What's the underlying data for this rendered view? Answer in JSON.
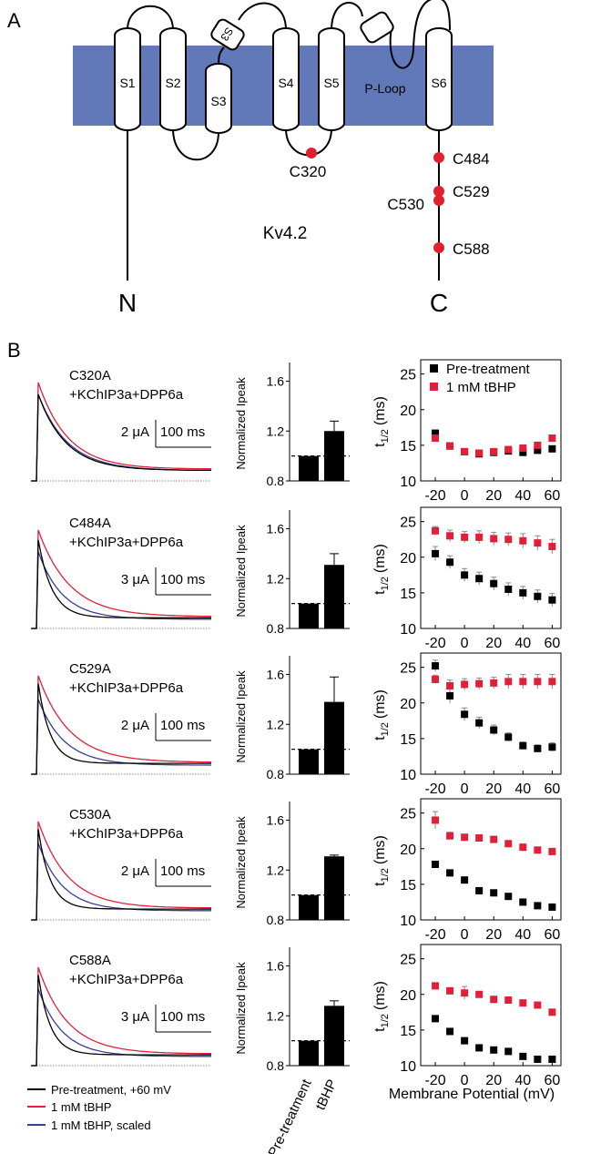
{
  "panels": {
    "a_label": "A",
    "b_label": "B"
  },
  "topology": {
    "segments": [
      "S1",
      "S2",
      "S3",
      "S4",
      "S5",
      "S6"
    ],
    "helix_label": "S3",
    "p_loop": "P-Loop",
    "channel": "Kv4.2",
    "n_term": "N",
    "c_term": "C",
    "cysteines": [
      "C320",
      "C484",
      "C529",
      "C530",
      "C588"
    ],
    "colors": {
      "membrane": "#6179b8",
      "cysteine": "#e0202f"
    }
  },
  "colors": {
    "pre": "#000000",
    "tbhp": "#e0203a",
    "scaled": "#3a3f8f"
  },
  "legend_traces": {
    "pre": "Pre-treatment, +60 mV",
    "tbhp": "1 mM tBHP",
    "scaled": "1 mM tBHP, scaled"
  },
  "legend_points": {
    "pre": "Pre-treatment",
    "tbhp": "1 mM tBHP"
  },
  "bar_axis": {
    "ylabel": "Normalized Ipeak",
    "ticks": [
      "0.8",
      "1.2",
      "1.6"
    ],
    "ylim": [
      0.8,
      1.75
    ],
    "categories": [
      "Pre-treatment",
      "tBHP"
    ]
  },
  "t_axis": {
    "ylabel_main": "t",
    "ylabel_sub": "1/2",
    "ylabel_unit": "(ms)",
    "yticks": [
      "10",
      "15",
      "20",
      "25"
    ],
    "ylim": [
      10,
      27
    ],
    "xticks": [
      "-20",
      "0",
      "20",
      "40",
      "60"
    ],
    "xlim": [
      -30,
      66
    ],
    "xlabel": "Membrane Potential (mV)"
  },
  "scalebar_time": "100 ms",
  "rows": [
    {
      "mutant": "C320A",
      "subunits": "+KChIP3a+DPP6a",
      "current": "2 μA"
    },
    {
      "mutant": "C484A",
      "subunits": "+KChIP3a+DPP6a",
      "current": "3 μA"
    },
    {
      "mutant": "C529A",
      "subunits": "+KChIP3a+DPP6a",
      "current": "2 μA"
    },
    {
      "mutant": "C530A",
      "subunits": "+KChIP3a+DPP6a",
      "current": "2 μA"
    },
    {
      "mutant": "C588A",
      "subunits": "+KChIP3a+DPP6a",
      "current": "3 μA"
    }
  ],
  "chart_data": [
    {
      "type": "bar",
      "categories": [
        "Pre-treatment",
        "tBHP"
      ],
      "values": [
        1.0,
        1.2
      ],
      "errors": [
        0,
        0.08
      ],
      "ylabel": "Normalized Ipeak",
      "ylim": [
        0.8,
        1.75
      ],
      "reference_line": 1.0
    },
    {
      "type": "scatter",
      "x": [
        -20,
        -10,
        0,
        10,
        20,
        30,
        40,
        50,
        60
      ],
      "series": [
        {
          "name": "Pre-treatment",
          "values": [
            16.7,
            14.9,
            14.1,
            13.8,
            14.0,
            14.2,
            14.0,
            14.3,
            14.5
          ],
          "errors": [
            0.4,
            0.3,
            0.3,
            0.3,
            0.3,
            0.5,
            0.5,
            0.5,
            0.4
          ]
        },
        {
          "name": "1 mM tBHP",
          "values": [
            16.0,
            14.9,
            14.1,
            13.9,
            14.1,
            14.4,
            14.6,
            15.0,
            16.0
          ],
          "errors": [
            0.3,
            0.3,
            0.3,
            0.2,
            0.2,
            0.3,
            0.3,
            0.3,
            0.4
          ]
        }
      ],
      "ylabel": "t1/2 (ms)",
      "xlabel": "Membrane Potential (mV)",
      "ylim": [
        10,
        27
      ]
    },
    {
      "type": "bar",
      "categories": [
        "Pre-treatment",
        "tBHP"
      ],
      "values": [
        1.0,
        1.31
      ],
      "errors": [
        0,
        0.09
      ],
      "ylabel": "Normalized Ipeak",
      "ylim": [
        0.8,
        1.75
      ],
      "reference_line": 1.0
    },
    {
      "type": "scatter",
      "x": [
        -20,
        -10,
        0,
        10,
        20,
        30,
        40,
        50,
        60
      ],
      "series": [
        {
          "name": "Pre-treatment",
          "values": [
            20.5,
            19.3,
            17.5,
            17.0,
            16.3,
            15.5,
            15.0,
            14.5,
            14.0
          ],
          "errors": [
            1.0,
            0.9,
            0.9,
            0.9,
            0.9,
            0.9,
            0.9,
            0.9,
            0.9
          ]
        },
        {
          "name": "1 mM tBHP",
          "values": [
            23.7,
            23.0,
            22.8,
            22.8,
            22.6,
            22.5,
            22.3,
            22.0,
            21.5
          ],
          "errors": [
            0.6,
            0.8,
            0.8,
            0.9,
            0.9,
            0.9,
            1.0,
            1.0,
            1.0
          ]
        }
      ],
      "ylabel": "t1/2 (ms)",
      "xlabel": "Membrane Potential (mV)",
      "ylim": [
        10,
        27
      ]
    },
    {
      "type": "bar",
      "categories": [
        "Pre-treatment",
        "tBHP"
      ],
      "values": [
        1.0,
        1.38
      ],
      "errors": [
        0,
        0.2
      ],
      "ylabel": "Normalized Ipeak",
      "ylim": [
        0.8,
        1.75
      ],
      "reference_line": 1.0
    },
    {
      "type": "scatter",
      "x": [
        -20,
        -10,
        0,
        10,
        20,
        30,
        40,
        50,
        60
      ],
      "series": [
        {
          "name": "Pre-treatment",
          "values": [
            25.2,
            21.0,
            18.4,
            17.2,
            16.2,
            15.2,
            14.0,
            13.6,
            13.8
          ],
          "errors": [
            0.8,
            1.0,
            0.9,
            0.8,
            0.7,
            0.6,
            0.5,
            0.5,
            0.6
          ]
        },
        {
          "name": "1 mM tBHP",
          "values": [
            23.3,
            22.4,
            22.6,
            22.7,
            22.8,
            23.0,
            23.0,
            23.0,
            23.0
          ],
          "errors": [
            0.6,
            0.8,
            0.8,
            0.8,
            0.8,
            1.0,
            1.0,
            1.0,
            1.0
          ]
        }
      ],
      "ylabel": "t1/2 (ms)",
      "xlabel": "Membrane Potential (mV)",
      "ylim": [
        10,
        27
      ]
    },
    {
      "type": "bar",
      "categories": [
        "Pre-treatment",
        "tBHP"
      ],
      "values": [
        1.0,
        1.31
      ],
      "errors": [
        0,
        0.01
      ],
      "ylabel": "Normalized Ipeak",
      "ylim": [
        0.8,
        1.75
      ],
      "reference_line": 1.0
    },
    {
      "type": "scatter",
      "x": [
        -20,
        -10,
        0,
        10,
        20,
        30,
        40,
        50,
        60
      ],
      "series": [
        {
          "name": "Pre-treatment",
          "values": [
            17.8,
            16.6,
            15.6,
            14.1,
            13.8,
            13.3,
            12.5,
            12.0,
            11.8
          ],
          "errors": [
            0.3,
            0.3,
            0.3,
            0.2,
            0.2,
            0.2,
            0.2,
            0.2,
            0.2
          ]
        },
        {
          "name": "1 mM tBHP",
          "values": [
            24.0,
            21.8,
            21.6,
            21.5,
            21.3,
            20.7,
            20.2,
            19.8,
            19.6
          ],
          "errors": [
            1.2,
            0.5,
            0.4,
            0.4,
            0.4,
            0.4,
            0.3,
            0.3,
            0.3
          ]
        }
      ],
      "ylabel": "t1/2 (ms)",
      "xlabel": "Membrane Potential (mV)",
      "ylim": [
        10,
        27
      ]
    },
    {
      "type": "bar",
      "categories": [
        "Pre-treatment",
        "tBHP"
      ],
      "values": [
        1.0,
        1.28
      ],
      "errors": [
        0,
        0.04
      ],
      "ylabel": "Normalized Ipeak",
      "ylim": [
        0.8,
        1.75
      ],
      "reference_line": 1.0
    },
    {
      "type": "scatter",
      "x": [
        -20,
        -10,
        0,
        10,
        20,
        30,
        40,
        50,
        60
      ],
      "series": [
        {
          "name": "Pre-treatment",
          "values": [
            16.6,
            14.8,
            13.5,
            12.5,
            12.2,
            12.0,
            11.3,
            10.9,
            10.9
          ],
          "errors": [
            0.3,
            0.3,
            0.3,
            0.2,
            0.2,
            0.2,
            0.2,
            0.2,
            0.2
          ]
        },
        {
          "name": "1 mM tBHP",
          "values": [
            21.2,
            20.5,
            20.2,
            20.0,
            19.3,
            19.2,
            18.8,
            18.5,
            17.5
          ],
          "errors": [
            0.3,
            0.3,
            0.9,
            0.4,
            0.3,
            0.3,
            0.3,
            0.3,
            0.4
          ]
        }
      ],
      "ylabel": "t1/2 (ms)",
      "xlabel": "Membrane Potential (mV)",
      "ylim": [
        10,
        27
      ]
    }
  ]
}
